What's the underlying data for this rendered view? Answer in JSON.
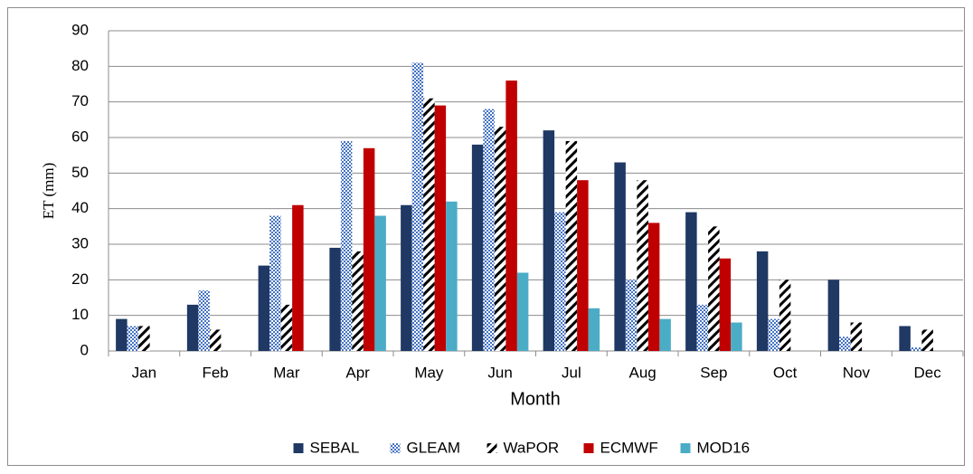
{
  "chart_data": {
    "type": "bar",
    "x_label": "Month",
    "y_label": "ET (mm)",
    "categories": [
      "Jan",
      "Feb",
      "Mar",
      "Apr",
      "May",
      "Jun",
      "Jul",
      "Aug",
      "Sep",
      "Oct",
      "Nov",
      "Dec"
    ],
    "series": [
      {
        "name": "SEBAL",
        "color": "#1f3864",
        "pattern": "solid",
        "values": [
          9,
          13,
          24,
          29,
          41,
          58,
          62,
          53,
          39,
          28,
          20,
          7
        ]
      },
      {
        "name": "GLEAM",
        "color": "#4472c4",
        "pattern": "checker",
        "values": [
          7,
          17,
          38,
          59,
          81,
          68,
          39,
          20,
          13,
          9,
          4,
          1
        ]
      },
      {
        "name": "WaPOR",
        "color": "#000000",
        "pattern": "diagonal",
        "values": [
          7,
          6,
          13,
          28,
          71,
          63,
          59,
          48,
          35,
          20,
          8,
          6
        ]
      },
      {
        "name": "ECMWF",
        "color": "#c00000",
        "pattern": "solid",
        "values": [
          null,
          null,
          41,
          57,
          69,
          76,
          48,
          36,
          26,
          null,
          null,
          null
        ]
      },
      {
        "name": "MOD16",
        "color": "#4bacc6",
        "pattern": "solid",
        "values": [
          null,
          null,
          null,
          38,
          42,
          22,
          12,
          9,
          8,
          null,
          null,
          null
        ]
      }
    ],
    "ylim": [
      0,
      90
    ],
    "yticks": [
      0,
      10,
      20,
      30,
      40,
      50,
      60,
      70,
      80,
      90
    ],
    "grid": true,
    "legend": "bottom"
  }
}
